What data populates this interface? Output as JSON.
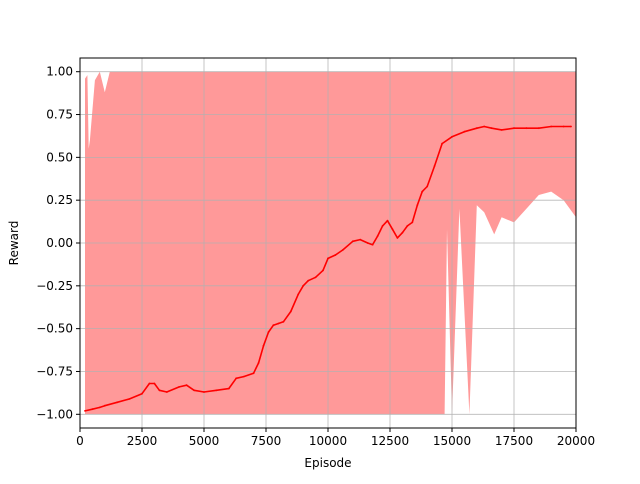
{
  "chart_data": {
    "type": "line",
    "title": "",
    "xlabel": "Episode",
    "ylabel": "Reward",
    "xlim": [
      0,
      20000
    ],
    "ylim": [
      -1.08,
      1.08
    ],
    "grid": true,
    "legend": "none",
    "x_ticks": [
      0,
      2500,
      5000,
      7500,
      10000,
      12500,
      15000,
      17500,
      20000
    ],
    "x_tick_labels": [
      "0",
      "2500",
      "5000",
      "7500",
      "10000",
      "12500",
      "15000",
      "17500",
      "20000"
    ],
    "y_ticks": [
      -1.0,
      -0.75,
      -0.5,
      -0.25,
      0.0,
      0.25,
      0.5,
      0.75,
      1.0
    ],
    "y_tick_labels": [
      "−1.00",
      "−0.75",
      "−0.50",
      "−0.25",
      "0.00",
      "0.25",
      "0.50",
      "0.75",
      "1.00"
    ],
    "colors": {
      "mean_line": "#ff0000",
      "band": "#ff9999",
      "grid": "#b0b0b0"
    },
    "series": [
      {
        "role": "moving_average",
        "x": [
          200,
          500,
          800,
          1000,
          1500,
          2000,
          2500,
          2800,
          3000,
          3200,
          3500,
          4000,
          4300,
          4600,
          5000,
          5500,
          6000,
          6300,
          6600,
          7000,
          7200,
          7400,
          7600,
          7800,
          8000,
          8200,
          8500,
          8800,
          9000,
          9200,
          9500,
          9800,
          10000,
          10300,
          10600,
          11000,
          11300,
          11600,
          11800,
          12000,
          12200,
          12400,
          12600,
          12800,
          13000,
          13200,
          13400,
          13600,
          13800,
          14000,
          14300,
          14600,
          15000,
          15500,
          16000,
          16300,
          16600,
          17000,
          17500,
          18000,
          18500,
          19000,
          19500,
          19800
        ],
        "y": [
          -0.98,
          -0.97,
          -0.96,
          -0.95,
          -0.93,
          -0.91,
          -0.88,
          -0.82,
          -0.82,
          -0.86,
          -0.87,
          -0.84,
          -0.83,
          -0.86,
          -0.87,
          -0.86,
          -0.85,
          -0.79,
          -0.78,
          -0.76,
          -0.7,
          -0.6,
          -0.52,
          -0.48,
          -0.47,
          -0.46,
          -0.4,
          -0.3,
          -0.25,
          -0.22,
          -0.2,
          -0.16,
          -0.09,
          -0.07,
          -0.04,
          0.01,
          0.02,
          0.0,
          -0.01,
          0.04,
          0.1,
          0.13,
          0.08,
          0.03,
          0.06,
          0.1,
          0.12,
          0.22,
          0.3,
          0.33,
          0.45,
          0.58,
          0.62,
          0.65,
          0.67,
          0.68,
          0.67,
          0.66,
          0.67,
          0.67,
          0.67,
          0.68,
          0.68,
          0.68
        ]
      },
      {
        "role": "min_max_band",
        "x": [
          200,
          300,
          350,
          400,
          600,
          800,
          1000,
          1200,
          1500,
          2000,
          3000,
          5000,
          8000,
          10000,
          12000,
          14000,
          14700,
          14800,
          15000,
          15300,
          15700,
          16000,
          16300,
          16700,
          17000,
          17500,
          18000,
          18500,
          19000,
          19500,
          20000
        ],
        "y_upper": [
          0.96,
          0.98,
          0.55,
          0.6,
          0.95,
          1.0,
          0.88,
          1.0,
          1.0,
          1.0,
          1.0,
          1.0,
          1.0,
          1.0,
          1.0,
          1.0,
          1.0,
          1.0,
          1.0,
          1.0,
          1.0,
          1.0,
          1.0,
          1.0,
          1.0,
          1.0,
          1.0,
          1.0,
          1.0,
          1.0,
          1.0
        ],
        "y_lower": [
          -1.0,
          -1.0,
          -1.0,
          -1.0,
          -1.0,
          -1.0,
          -1.0,
          -1.0,
          -1.0,
          -1.0,
          -1.0,
          -1.0,
          -1.0,
          -1.0,
          -1.0,
          -1.0,
          -1.0,
          0.08,
          -1.0,
          0.2,
          -1.0,
          0.22,
          0.18,
          0.05,
          0.15,
          0.12,
          0.2,
          0.28,
          0.3,
          0.25,
          0.15
        ]
      }
    ]
  }
}
